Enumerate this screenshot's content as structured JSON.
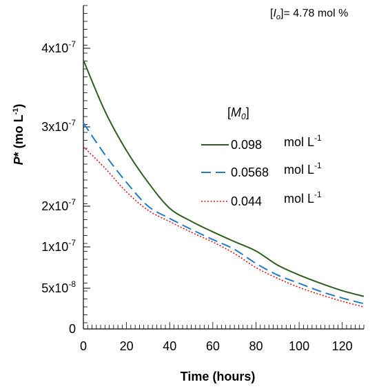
{
  "chart_data": {
    "type": "line",
    "annotation": {
      "prefix": "[",
      "symbol": "I",
      "subscript": "o",
      "suffix": "]= 4.78 mol %"
    },
    "xlabel": "Time (hours)",
    "ylabel": {
      "symbol": "P",
      "star": "*",
      "unit": " (mo L",
      "unit_sup": "-1",
      "close": ")"
    },
    "x_ticks": [
      "0",
      "20",
      "40",
      "60",
      "80",
      "100",
      "120"
    ],
    "y_ticks": [
      {
        "label": "0",
        "value": 0
      },
      {
        "label": "5x10",
        "exp": "-8",
        "value": 5e-08
      },
      {
        "label": "1x10",
        "exp": "-7",
        "value": 1e-07
      },
      {
        "label": "2x10",
        "exp": "-7",
        "value": 2e-07
      },
      {
        "label": "3x10",
        "exp": "-7",
        "value": 3e-07
      },
      {
        "label": "4x10",
        "exp": "-7",
        "value": 4e-07
      }
    ],
    "xlim": [
      0,
      130
    ],
    "legend": {
      "title_prefix": "[",
      "title_symbol": "M",
      "title_sub": "0",
      "title_suffix": "]",
      "placement": "center-right"
    },
    "series": [
      {
        "name": "0.098",
        "unit": "mol L",
        "unit_sup": "-1",
        "color": "#2e5e1e",
        "style": "solid",
        "x": [
          0,
          10,
          20,
          30,
          40,
          50,
          60,
          70,
          80,
          90,
          100,
          110,
          120,
          130
        ],
        "y": [
          3.85e-07,
          3.2e-07,
          2.7e-07,
          2.3e-07,
          1.95e-07,
          1.63e-07,
          1.37e-07,
          1.13e-07,
          9.5e-08,
          7.8e-08,
          6.6e-08,
          5.6e-08,
          4.7e-08,
          4e-08
        ]
      },
      {
        "name": "0.0568",
        "unit": "mol L",
        "unit_sup": "-1",
        "color": "#1f7bc4",
        "style": "dashed",
        "x": [
          0,
          10,
          20,
          30,
          40,
          50,
          60,
          70,
          80,
          90,
          100,
          110,
          120,
          130
        ],
        "y": [
          3.05e-07,
          2.65e-07,
          2.3e-07,
          2e-07,
          1.7e-07,
          1.43e-07,
          1.18e-07,
          9.7e-08,
          8e-08,
          6.6e-08,
          5.6e-08,
          4.6e-08,
          3.8e-08,
          3.1e-08
        ]
      },
      {
        "name": "0.044",
        "unit": "mol L",
        "unit_sup": "-1",
        "color": "#e01010",
        "style": "dotted",
        "x": [
          0,
          10,
          20,
          30,
          40,
          50,
          60,
          70,
          80,
          90,
          100,
          110,
          120,
          130
        ],
        "y": [
          2.75e-07,
          2.48e-07,
          2.18e-07,
          1.9e-07,
          1.62e-07,
          1.36e-07,
          1.12e-07,
          9.2e-08,
          7.5e-08,
          6.2e-08,
          5.1e-08,
          4.2e-08,
          3.4e-08,
          2.7e-08
        ]
      }
    ],
    "grid": false
  }
}
